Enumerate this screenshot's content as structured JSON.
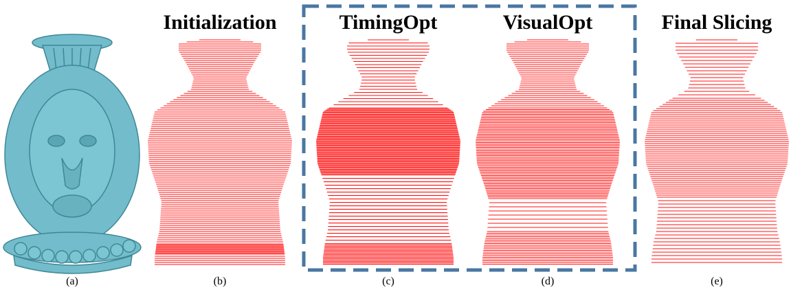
{
  "panels": [
    {
      "caption": "(a)"
    },
    {
      "title": "Initialization",
      "caption": "(b)"
    },
    {
      "title": "TimingOpt",
      "caption": "(c)"
    },
    {
      "title": "VisualOpt",
      "caption": "(d)"
    },
    {
      "title": "Final Slicing",
      "caption": "(e)"
    }
  ]
}
